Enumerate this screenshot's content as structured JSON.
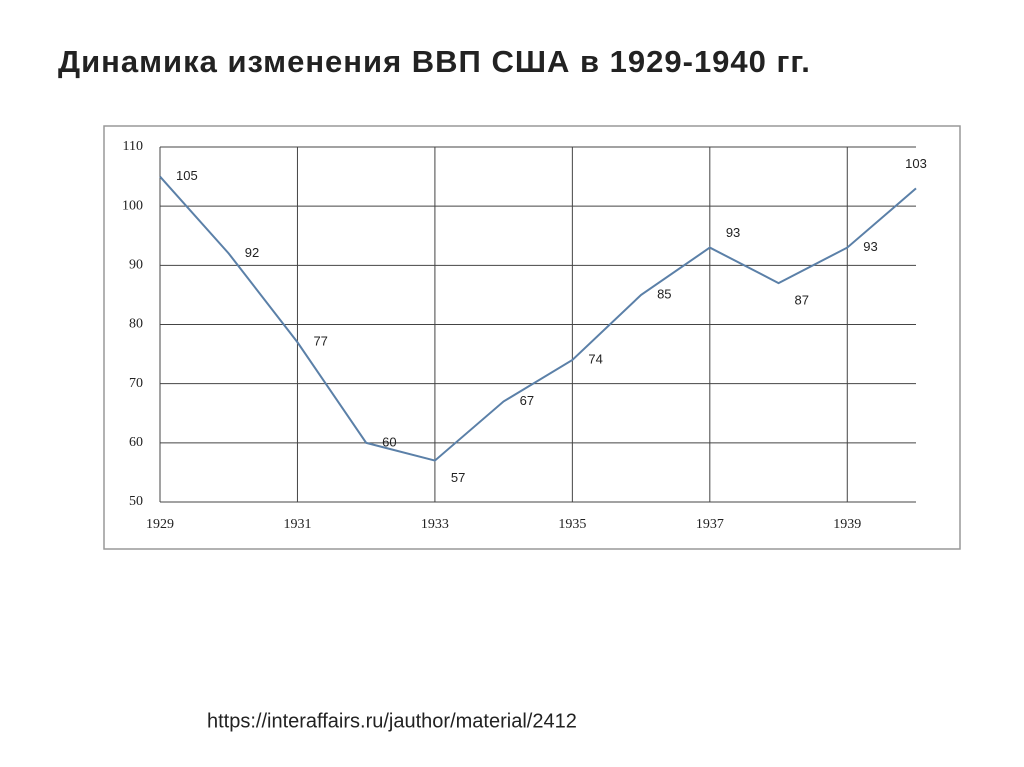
{
  "chart_data": {
    "type": "line",
    "title": "Динамика изменения ВВП США в 1929-1940 гг.",
    "x": [
      1929,
      1930,
      1931,
      1932,
      1933,
      1934,
      1935,
      1936,
      1937,
      1938,
      1939,
      1940
    ],
    "series": [
      {
        "name": "ВВП США",
        "color": "#5b80a8",
        "values": [
          105,
          92,
          77,
          60,
          57,
          67,
          74,
          85,
          93,
          87,
          93,
          103
        ]
      }
    ],
    "xlim": [
      1929,
      1940
    ],
    "xticks": [
      1929,
      1931,
      1933,
      1935,
      1937,
      1939
    ],
    "ylim": [
      50,
      110
    ],
    "yticks": [
      50,
      60,
      70,
      80,
      90,
      100,
      110
    ],
    "grid": true,
    "source": "https://interaffairs.ru/jauthor/material/2412"
  }
}
